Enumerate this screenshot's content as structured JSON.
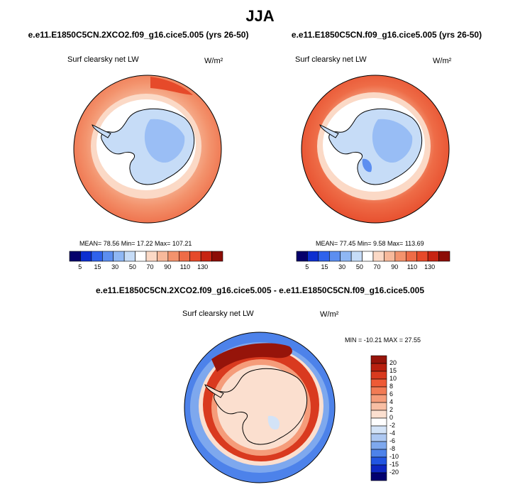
{
  "header": {
    "title": "JJA"
  },
  "panel_a": {
    "title": "e.e11.E1850C5CN.2XCO2.f09_g16.cice5.005 (yrs 26-50)",
    "variable": "Surf clearsky net LW",
    "units": "W/m²",
    "stats": "MEAN=  78.56  Min=  17.22  Max= 107.21"
  },
  "panel_b": {
    "title": "e.e11.E1850C5CN.f09_g16.cice5.005 (yrs 26-50)",
    "variable": "Surf clearsky net LW",
    "units": "W/m²",
    "stats": "MEAN=  77.45  Min=   9.58  Max= 113.69"
  },
  "panel_c": {
    "title": "e.e11.E1850C5CN.2XCO2.f09_g16.cice5.005 - e.e11.E1850C5CN.f09_g16.cice5.005",
    "variable": "Surf clearsky net LW",
    "units": "W/m²",
    "stats": "MIN = -10.21 MAX =  27.55"
  },
  "chart_data": [
    {
      "type": "heatmap",
      "projection": "south-polar-stereographic",
      "title": "e.e11.E1850C5CN.2XCO2.f09_g16.cice5.005 (yrs 26-50)",
      "variable": "Surf clearsky net LW",
      "units": "W/m2",
      "mean": 78.56,
      "min": 17.22,
      "max": 107.21,
      "colorbar_ticks": [
        5,
        15,
        30,
        50,
        70,
        90,
        110,
        130
      ],
      "colorbar_colors": [
        "#06006b",
        "#0d2fd0",
        "#2f62ec",
        "#5c8ef0",
        "#8fb7f4",
        "#c6dcf7",
        "#ffffff",
        "#fbd9c6",
        "#f7b99b",
        "#f3936d",
        "#ee6c47",
        "#e64a2a",
        "#c72412",
        "#8c0d06"
      ]
    },
    {
      "type": "heatmap",
      "projection": "south-polar-stereographic",
      "title": "e.e11.E1850C5CN.f09_g16.cice5.005 (yrs 26-50)",
      "variable": "Surf clearsky net LW",
      "units": "W/m2",
      "mean": 77.45,
      "min": 9.58,
      "max": 113.69,
      "colorbar_ticks": [
        5,
        15,
        30,
        50,
        70,
        90,
        110,
        130
      ],
      "colorbar_colors": [
        "#06006b",
        "#0d2fd0",
        "#2f62ec",
        "#5c8ef0",
        "#8fb7f4",
        "#c6dcf7",
        "#ffffff",
        "#fbd9c6",
        "#f7b99b",
        "#f3936d",
        "#ee6c47",
        "#e64a2a",
        "#c72412",
        "#8c0d06"
      ]
    },
    {
      "type": "heatmap",
      "projection": "south-polar-stereographic",
      "title": "e.e11.E1850C5CN.2XCO2.f09_g16.cice5.005 - e.e11.E1850C5CN.f09_g16.cice5.005",
      "variable": "Surf clearsky net LW",
      "units": "W/m2",
      "min": -10.21,
      "max": 27.55,
      "colorbar_ticks": [
        20,
        15,
        10,
        8,
        6,
        4,
        2,
        0,
        -2,
        -4,
        -6,
        -8,
        -10,
        -15,
        -20
      ],
      "colorbar_colors": [
        "#96140a",
        "#b8200f",
        "#d93a1f",
        "#ee5a36",
        "#f27b55",
        "#f59c7a",
        "#f8bea3",
        "#fbdfcf",
        "#ffffff",
        "#d3e3f7",
        "#adc8f2",
        "#7ea8ee",
        "#4d82ea",
        "#2255e2",
        "#0e27c2",
        "#02006f"
      ]
    }
  ]
}
